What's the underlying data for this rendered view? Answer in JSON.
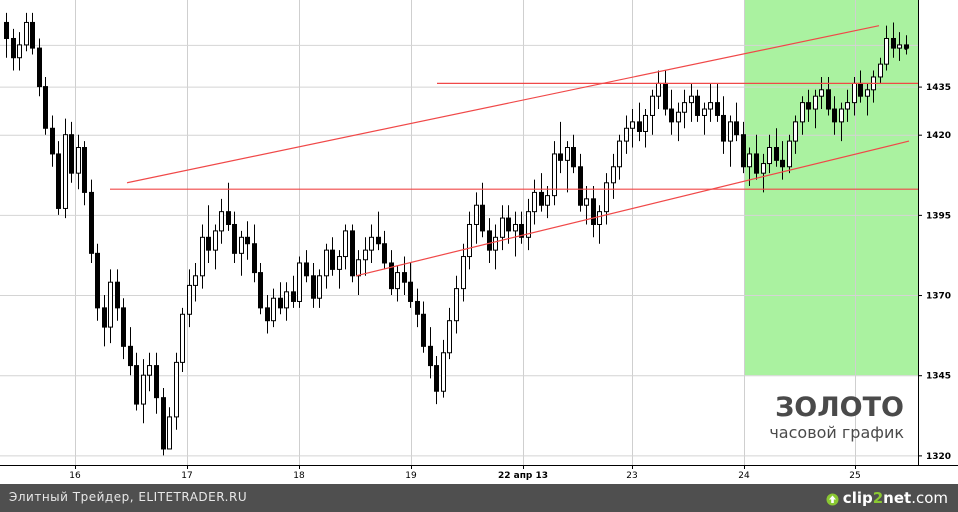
{
  "chart_data": {
    "type": "candlestick",
    "title": "ЗОЛОТО",
    "subtitle": "часовой график",
    "x_ticks": [
      "16",
      "17",
      "18",
      "19",
      "22 апр 13",
      "23",
      "24",
      "25"
    ],
    "y_ticks": [
      1320,
      1345,
      1370,
      1395,
      1420,
      1435
    ],
    "ylim": [
      1317,
      1462
    ],
    "highlight_region": {
      "from_day": "24",
      "to": "end",
      "color": "#aaf2a0"
    },
    "horizontal_levels": [
      1403,
      1436
    ],
    "channel_lines": [
      {
        "from": [
          "15 (late)",
          1405
        ],
        "to": [
          "25 (late)",
          1454
        ]
      },
      {
        "from": [
          "18 (late)",
          1376
        ],
        "to": [
          "25 (late)",
          1418
        ]
      }
    ],
    "last_value": 1447,
    "ohlc": [
      [
        1455,
        1458,
        1444,
        1450
      ],
      [
        1450,
        1453,
        1440,
        1444
      ],
      [
        1444,
        1452,
        1440,
        1448
      ],
      [
        1448,
        1458,
        1446,
        1455
      ],
      [
        1455,
        1458,
        1445,
        1447
      ],
      [
        1447,
        1450,
        1432,
        1435
      ],
      [
        1435,
        1438,
        1420,
        1422
      ],
      [
        1422,
        1426,
        1410,
        1414
      ],
      [
        1414,
        1418,
        1395,
        1397
      ],
      [
        1397,
        1425,
        1394,
        1420
      ],
      [
        1420,
        1424,
        1405,
        1408
      ],
      [
        1408,
        1420,
        1403,
        1416
      ],
      [
        1416,
        1418,
        1398,
        1402
      ],
      [
        1402,
        1406,
        1380,
        1383
      ],
      [
        1383,
        1386,
        1362,
        1366
      ],
      [
        1366,
        1370,
        1354,
        1360
      ],
      [
        1360,
        1378,
        1355,
        1374
      ],
      [
        1374,
        1378,
        1362,
        1366
      ],
      [
        1366,
        1369,
        1350,
        1354
      ],
      [
        1354,
        1360,
        1345,
        1348
      ],
      [
        1348,
        1352,
        1334,
        1336
      ],
      [
        1336,
        1350,
        1330,
        1345
      ],
      [
        1345,
        1352,
        1340,
        1348
      ],
      [
        1348,
        1352,
        1333,
        1338
      ],
      [
        1338,
        1341,
        1320,
        1322
      ],
      [
        1322,
        1335,
        1322,
        1332
      ],
      [
        1332,
        1352,
        1328,
        1349
      ],
      [
        1349,
        1366,
        1346,
        1364
      ],
      [
        1364,
        1378,
        1360,
        1373
      ],
      [
        1373,
        1380,
        1368,
        1376
      ],
      [
        1376,
        1392,
        1372,
        1388
      ],
      [
        1388,
        1398,
        1380,
        1384
      ],
      [
        1384,
        1392,
        1378,
        1390
      ],
      [
        1390,
        1400,
        1386,
        1396
      ],
      [
        1396,
        1405,
        1390,
        1392
      ],
      [
        1392,
        1396,
        1380,
        1383
      ],
      [
        1383,
        1390,
        1376,
        1388
      ],
      [
        1388,
        1393,
        1381,
        1386
      ],
      [
        1386,
        1392,
        1374,
        1377
      ],
      [
        1377,
        1380,
        1364,
        1366
      ],
      [
        1366,
        1370,
        1358,
        1362
      ],
      [
        1362,
        1372,
        1360,
        1369
      ],
      [
        1369,
        1374,
        1364,
        1366
      ],
      [
        1366,
        1374,
        1362,
        1371
      ],
      [
        1371,
        1376,
        1366,
        1368
      ],
      [
        1368,
        1382,
        1366,
        1380
      ],
      [
        1380,
        1384,
        1374,
        1376
      ],
      [
        1376,
        1380,
        1366,
        1369
      ],
      [
        1369,
        1378,
        1366,
        1376
      ],
      [
        1376,
        1386,
        1372,
        1384
      ],
      [
        1384,
        1388,
        1376,
        1378
      ],
      [
        1378,
        1384,
        1372,
        1382
      ],
      [
        1382,
        1392,
        1378,
        1390
      ],
      [
        1390,
        1392,
        1374,
        1376
      ],
      [
        1376,
        1384,
        1370,
        1381
      ],
      [
        1381,
        1388,
        1376,
        1384
      ],
      [
        1384,
        1392,
        1380,
        1388
      ],
      [
        1388,
        1396,
        1384,
        1386
      ],
      [
        1386,
        1390,
        1378,
        1380
      ],
      [
        1380,
        1384,
        1370,
        1372
      ],
      [
        1372,
        1379,
        1368,
        1377
      ],
      [
        1377,
        1382,
        1370,
        1374
      ],
      [
        1374,
        1380,
        1366,
        1368
      ],
      [
        1368,
        1372,
        1360,
        1364
      ],
      [
        1364,
        1368,
        1352,
        1354
      ],
      [
        1354,
        1360,
        1344,
        1348
      ],
      [
        1348,
        1351,
        1336,
        1340
      ],
      [
        1340,
        1356,
        1338,
        1352
      ],
      [
        1352,
        1366,
        1350,
        1362
      ],
      [
        1362,
        1376,
        1358,
        1372
      ],
      [
        1372,
        1386,
        1368,
        1382
      ],
      [
        1382,
        1396,
        1378,
        1392
      ],
      [
        1392,
        1402,
        1386,
        1398
      ],
      [
        1398,
        1405,
        1388,
        1390
      ],
      [
        1390,
        1394,
        1380,
        1384
      ],
      [
        1384,
        1392,
        1378,
        1388
      ],
      [
        1388,
        1398,
        1384,
        1394
      ],
      [
        1394,
        1398,
        1386,
        1390
      ],
      [
        1390,
        1396,
        1382,
        1392
      ],
      [
        1392,
        1396,
        1386,
        1388
      ],
      [
        1388,
        1400,
        1384,
        1396
      ],
      [
        1396,
        1406,
        1392,
        1402
      ],
      [
        1402,
        1408,
        1396,
        1398
      ],
      [
        1398,
        1404,
        1394,
        1401
      ],
      [
        1401,
        1418,
        1398,
        1414
      ],
      [
        1414,
        1424,
        1408,
        1412
      ],
      [
        1412,
        1418,
        1402,
        1416
      ],
      [
        1416,
        1420,
        1408,
        1410
      ],
      [
        1410,
        1414,
        1396,
        1398
      ],
      [
        1398,
        1404,
        1392,
        1400
      ],
      [
        1400,
        1404,
        1388,
        1392
      ],
      [
        1392,
        1398,
        1386,
        1396
      ],
      [
        1396,
        1408,
        1392,
        1405
      ],
      [
        1405,
        1414,
        1400,
        1410
      ],
      [
        1410,
        1420,
        1406,
        1418
      ],
      [
        1418,
        1426,
        1414,
        1422
      ],
      [
        1422,
        1428,
        1416,
        1424
      ],
      [
        1424,
        1430,
        1418,
        1421
      ],
      [
        1421,
        1428,
        1416,
        1426
      ],
      [
        1426,
        1434,
        1420,
        1432
      ],
      [
        1432,
        1440,
        1428,
        1436
      ],
      [
        1436,
        1440,
        1426,
        1428
      ],
      [
        1428,
        1434,
        1420,
        1424
      ],
      [
        1424,
        1430,
        1418,
        1427
      ],
      [
        1427,
        1434,
        1422,
        1430
      ],
      [
        1430,
        1436,
        1424,
        1432
      ],
      [
        1432,
        1434,
        1424,
        1426
      ],
      [
        1426,
        1430,
        1420,
        1428
      ],
      [
        1428,
        1436,
        1424,
        1430
      ],
      [
        1430,
        1436,
        1424,
        1426
      ],
      [
        1426,
        1432,
        1414,
        1418
      ],
      [
        1418,
        1426,
        1410,
        1424
      ],
      [
        1424,
        1430,
        1418,
        1420
      ],
      [
        1420,
        1424,
        1408,
        1410
      ],
      [
        1410,
        1416,
        1404,
        1414
      ],
      [
        1414,
        1420,
        1406,
        1408
      ],
      [
        1408,
        1414,
        1402,
        1411
      ],
      [
        1411,
        1420,
        1408,
        1416
      ],
      [
        1416,
        1422,
        1410,
        1412
      ],
      [
        1412,
        1418,
        1406,
        1410
      ],
      [
        1410,
        1420,
        1408,
        1418
      ],
      [
        1418,
        1426,
        1414,
        1424
      ],
      [
        1424,
        1432,
        1420,
        1430
      ],
      [
        1430,
        1434,
        1424,
        1428
      ],
      [
        1428,
        1434,
        1422,
        1432
      ],
      [
        1432,
        1438,
        1428,
        1434
      ],
      [
        1434,
        1438,
        1426,
        1428
      ],
      [
        1428,
        1432,
        1420,
        1424
      ],
      [
        1424,
        1430,
        1418,
        1428
      ],
      [
        1428,
        1434,
        1424,
        1430
      ],
      [
        1430,
        1438,
        1426,
        1436
      ],
      [
        1436,
        1440,
        1430,
        1432
      ],
      [
        1432,
        1436,
        1426,
        1434
      ],
      [
        1434,
        1440,
        1430,
        1438
      ],
      [
        1438,
        1444,
        1436,
        1442
      ],
      [
        1442,
        1454,
        1440,
        1450
      ],
      [
        1450,
        1455,
        1444,
        1447
      ],
      [
        1447,
        1452,
        1443,
        1448
      ],
      [
        1448,
        1451,
        1445,
        1447
      ]
    ]
  },
  "footer": {
    "left_text": "Элитный Трейдер, ELITETRADER.RU",
    "logo_part1": "clip",
    "logo_part2": "2",
    "logo_part3": "net",
    "logo_part4": ".com"
  }
}
